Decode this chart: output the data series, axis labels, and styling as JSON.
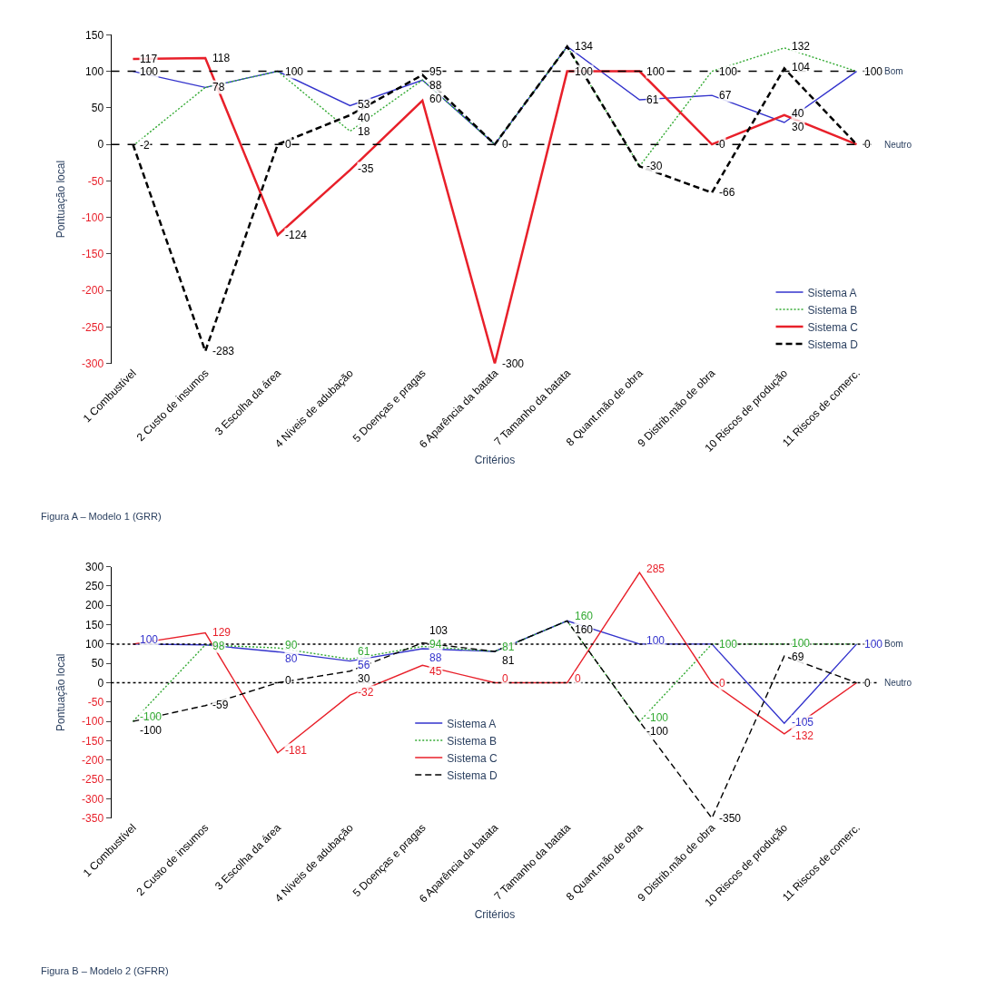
{
  "chart_data": [
    {
      "type": "line",
      "xlabel": "Critérios",
      "ylabel": "Pontuação local",
      "annotations": [
        "Figura A – Modelo 1 (GRR)"
      ],
      "categories": [
        "1 Combustível",
        "2 Custo de insumos",
        "3 Escolha da área",
        "4 Níveis de adubação",
        "5 Doenças e pragas",
        "6 Aparência da batata",
        "7 Tamanho da batata",
        "8 Quant.mão de obra",
        "9 Distrib.mão de obra",
        "10 Riscos de produção",
        "11 Riscos de comerc."
      ],
      "series": [
        {
          "name": "Sistema A",
          "color": "#3333cc",
          "line_style": "solid",
          "values": [
            100,
            78,
            100,
            53,
            88,
            0,
            134,
            61,
            67,
            30,
            100
          ],
          "value_labels": [
            "100",
            "78",
            "100",
            "53",
            "88",
            null,
            "134",
            "61",
            "67",
            "30",
            "100"
          ]
        },
        {
          "name": "Sistema B",
          "color": "#33aa33",
          "line_style": "dotted",
          "values": [
            -2,
            78,
            100,
            18,
            88,
            0,
            134,
            -30,
            100,
            132,
            100
          ],
          "value_labels": [
            "-2",
            null,
            null,
            "18",
            null,
            null,
            null,
            null,
            "100",
            "132",
            null
          ]
        },
        {
          "name": "Sistema C",
          "color": "#e8202a",
          "line_style": "solid",
          "values": [
            117,
            118,
            -124,
            -35,
            60,
            -300,
            100,
            100,
            0,
            40,
            0
          ],
          "value_labels": [
            "117",
            "118",
            "-124",
            "-35",
            "60",
            "-300",
            "100",
            "100",
            "0",
            "40",
            null
          ]
        },
        {
          "name": "Sistema D",
          "color": "#000000",
          "line_style": "dashed",
          "values": [
            0,
            -283,
            0,
            40,
            95,
            0,
            134,
            -30,
            -66,
            104,
            0
          ],
          "value_labels": [
            null,
            "-283",
            "0",
            "40",
            "95",
            "0",
            null,
            "-30",
            "-66",
            "104",
            "0"
          ]
        }
      ],
      "ylim": [
        -300,
        150
      ],
      "yticks": [
        -300,
        -250,
        -200,
        -150,
        -100,
        -50,
        0,
        50,
        100,
        150
      ],
      "ref_lines": [
        {
          "axis": "y",
          "value": 100,
          "label": "Bom",
          "color": "#000000",
          "line_style": "dashed"
        },
        {
          "axis": "y",
          "value": 0,
          "label": "Neutro",
          "color": "#000000",
          "line_style": "dashed"
        }
      ],
      "legend": "bottom right",
      "grid": false,
      "marker": "none"
    },
    {
      "type": "line",
      "xlabel": "Critérios",
      "ylabel": "Pontuação local",
      "annotations": [
        "Figura B – Modelo 2 (GFRR)"
      ],
      "categories": [
        "1 Combustível",
        "2 Custo de insumos",
        "3 Escolha da área",
        "4 Níveis de adubação",
        "5 Doenças e pragas",
        "6 Aparência da batata",
        "7 Tamanho da batata",
        "8 Quant.mão de obra",
        "9 Distrib.mão de obra",
        "10 Riscos de produção",
        "11 Riscos de comerc."
      ],
      "series": [
        {
          "name": "Sistema A",
          "color": "#3333cc",
          "line_style": "solid",
          "values": [
            100,
            98,
            80,
            56,
            88,
            81,
            160,
            100,
            100,
            -105,
            100
          ],
          "value_labels": [
            "100",
            null,
            "80",
            "56",
            "88",
            null,
            null,
            "100",
            null,
            "-105",
            "100"
          ]
        },
        {
          "name": "Sistema B",
          "color": "#33aa33",
          "line_style": "dotted",
          "values": [
            -100,
            98,
            90,
            61,
            94,
            81,
            160,
            -100,
            100,
            100,
            100
          ],
          "value_labels": [
            "-100",
            "98",
            "90",
            "61",
            "94",
            "81",
            "160",
            "-100",
            "100",
            "100",
            null
          ]
        },
        {
          "name": "Sistema C",
          "color": "#e8202a",
          "line_style": "solid",
          "values": [
            100,
            129,
            -181,
            -32,
            45,
            0,
            0,
            285,
            0,
            -132,
            0
          ],
          "value_labels": [
            null,
            "129",
            "-181",
            "-32",
            "45",
            "0",
            "0",
            "285",
            "0",
            "-132",
            null
          ]
        },
        {
          "name": "Sistema D",
          "color": "#000000",
          "line_style": "dashed",
          "values": [
            -100,
            -59,
            0,
            30,
            103,
            81,
            160,
            -100,
            -350,
            69,
            0
          ],
          "value_labels": [
            "-100",
            "-59",
            "0",
            "30",
            "103",
            "81",
            "160",
            "-100",
            "-350",
            "69",
            "0"
          ]
        }
      ],
      "ylim": [
        -350,
        300
      ],
      "yticks": [
        -350,
        -300,
        -250,
        -200,
        -150,
        -100,
        -50,
        0,
        50,
        100,
        150,
        200,
        250,
        300
      ],
      "ref_lines": [
        {
          "axis": "y",
          "value": 100,
          "label": "Bom",
          "color": "#000000",
          "line_style": "dotted"
        },
        {
          "axis": "y",
          "value": 0,
          "label": "Neutro",
          "color": "#000000",
          "line_style": "dotted"
        }
      ],
      "legend": "bottom",
      "grid": false,
      "marker": "none"
    }
  ]
}
